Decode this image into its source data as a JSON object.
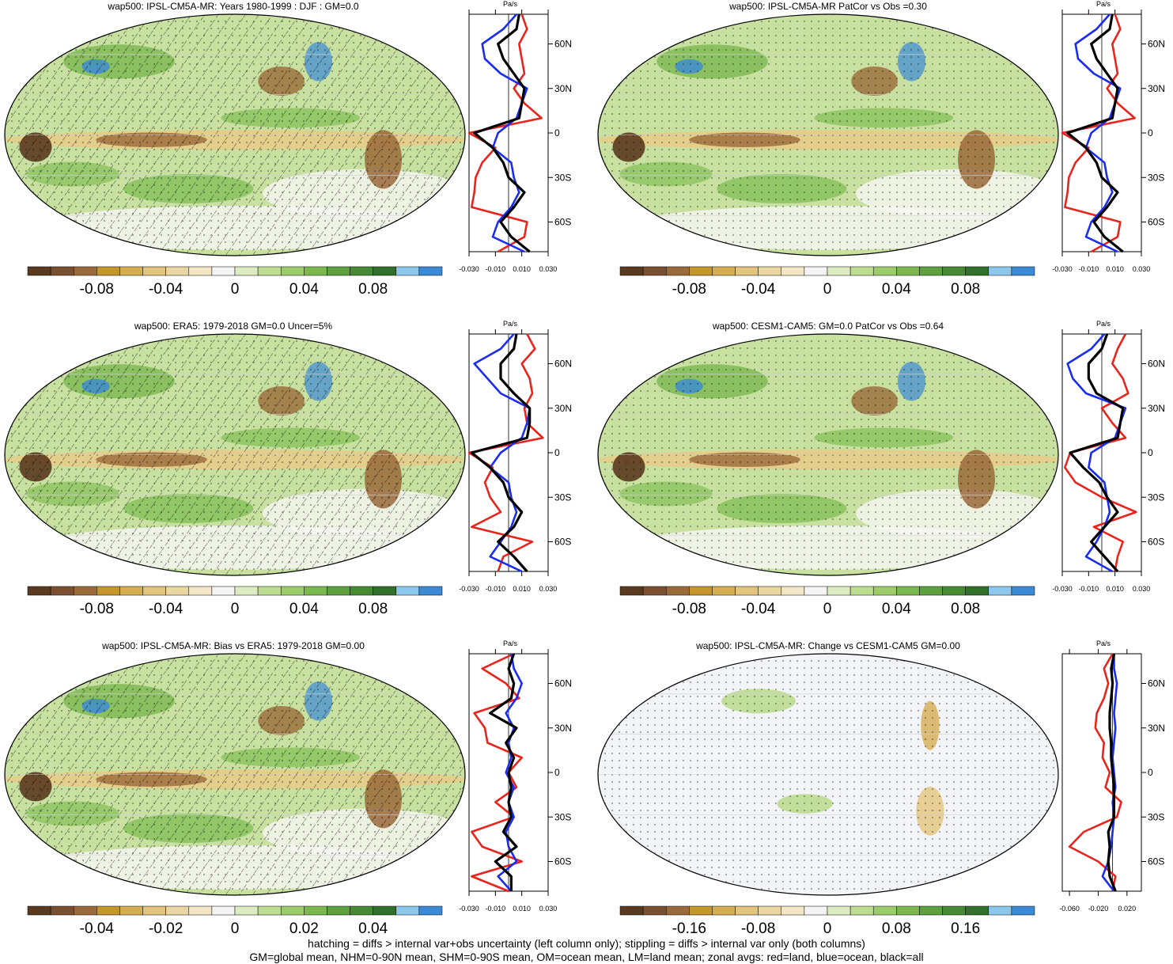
{
  "colors": {
    "palette": [
      "#5a3a1e",
      "#7a5030",
      "#9a6a3a",
      "#c4962c",
      "#d6ae52",
      "#e2c47c",
      "#ead6a0",
      "#f2e6c6",
      "#f4f4f4",
      "#dcecc0",
      "#bcdc90",
      "#9ccc6a",
      "#7cb850",
      "#5ea03e",
      "#468a34",
      "#30702a",
      "#8cc8ee",
      "#3a8ad6"
    ],
    "land_line": "#e8241c",
    "ocean_line": "#1a2cf0",
    "all_line": "#000000"
  },
  "profile_axis": {
    "unit": "Pa/s",
    "lat_ticks": [
      "60N",
      "30N",
      "0",
      "30S",
      "60S"
    ]
  },
  "panels": [
    {
      "title": "wap500: IPSL-CM5A-MR: Years 1980-1999 : DJF : GM=0.0",
      "hatching": true,
      "colorbar_ticks": [
        "-0.08",
        "-0.04",
        "0",
        "0.04",
        "0.08"
      ],
      "profile_xticks": [
        "-0.030",
        "-0.010",
        "0.010",
        "0.030"
      ],
      "chart_data": {
        "type": "line",
        "title": "wap500: IPSL-CM5A-MR: Years 1980-1999 : DJF : GM=0.0",
        "xlabel": "Pa/s",
        "xlim": [
          -0.03,
          0.03
        ],
        "ylim": [
          -80,
          80
        ],
        "series": [
          {
            "name": "red=land",
            "lat": [
              -80,
              -70,
              -60,
              -50,
              -40,
              -30,
              -20,
              -10,
              0,
              10,
              20,
              30,
              40,
              50,
              60,
              70,
              80
            ],
            "values": [
              -0.008,
              0.012,
              0.014,
              -0.028,
              -0.026,
              -0.025,
              -0.02,
              -0.01,
              -0.03,
              0.025,
              0.012,
              0.004,
              0.012,
              0.01,
              0.008,
              0.014,
              0.01
            ]
          },
          {
            "name": "blue=ocean",
            "lat": [
              -80,
              -70,
              -60,
              -50,
              -40,
              -30,
              -20,
              -10,
              0,
              10,
              20,
              30,
              40,
              50,
              60,
              70,
              80
            ],
            "values": [
              0.012,
              -0.012,
              -0.008,
              0.002,
              0.008,
              0.004,
              0.002,
              -0.012,
              -0.008,
              0.006,
              0.01,
              0.014,
              -0.006,
              -0.018,
              -0.02,
              -0.004,
              0.006
            ]
          },
          {
            "name": "black=all",
            "lat": [
              -80,
              -70,
              -60,
              -50,
              -40,
              -30,
              -20,
              -10,
              0,
              10,
              20,
              30,
              40,
              50,
              60,
              70,
              80
            ],
            "values": [
              0.016,
              0.002,
              -0.006,
              0.004,
              0.012,
              0.0,
              -0.004,
              -0.012,
              -0.026,
              0.008,
              0.01,
              0.012,
              0.004,
              -0.004,
              -0.008,
              0.006,
              0.008
            ]
          }
        ]
      }
    },
    {
      "title": "wap500: IPSL-CM5A-MR PatCor vs Obs =0.30",
      "hatching": false,
      "colorbar_ticks": [
        "-0.08",
        "-0.04",
        "0",
        "0.04",
        "0.08"
      ],
      "profile_xticks": [
        "-0.030",
        "-0.010",
        "0.010",
        "0.030"
      ],
      "chart_data": {
        "type": "line",
        "title": "wap500: IPSL-CM5A-MR PatCor vs Obs =0.30",
        "xlabel": "Pa/s",
        "xlim": [
          -0.03,
          0.03
        ],
        "ylim": [
          -80,
          80
        ],
        "series": [
          {
            "name": "red=land",
            "lat": [
              -80,
              -70,
              -60,
              -50,
              -40,
              -30,
              -20,
              -10,
              0,
              10,
              20,
              30,
              40,
              50,
              60,
              70,
              80
            ],
            "values": [
              -0.008,
              0.012,
              0.014,
              -0.028,
              -0.026,
              -0.025,
              -0.02,
              -0.01,
              -0.03,
              0.025,
              0.012,
              0.004,
              0.012,
              0.01,
              0.008,
              0.014,
              0.01
            ]
          },
          {
            "name": "blue=ocean",
            "lat": [
              -80,
              -70,
              -60,
              -50,
              -40,
              -30,
              -20,
              -10,
              0,
              10,
              20,
              30,
              40,
              50,
              60,
              70,
              80
            ],
            "values": [
              0.012,
              -0.012,
              -0.008,
              0.002,
              0.008,
              0.004,
              0.002,
              -0.012,
              -0.008,
              0.006,
              0.01,
              0.014,
              -0.006,
              -0.018,
              -0.02,
              -0.004,
              0.006
            ]
          },
          {
            "name": "black=all",
            "lat": [
              -80,
              -70,
              -60,
              -50,
              -40,
              -30,
              -20,
              -10,
              0,
              10,
              20,
              30,
              40,
              50,
              60,
              70,
              80
            ],
            "values": [
              0.016,
              0.002,
              -0.006,
              0.004,
              0.012,
              0.0,
              -0.004,
              -0.012,
              -0.026,
              0.008,
              0.01,
              0.012,
              0.004,
              -0.004,
              -0.008,
              0.006,
              0.008
            ]
          }
        ]
      }
    },
    {
      "title": "wap500: ERA5: 1979-2018 GM=0.0 Uncer=5%",
      "hatching": true,
      "colorbar_ticks": [
        "-0.08",
        "-0.04",
        "0",
        "0.04",
        "0.08"
      ],
      "profile_xticks": [
        "-0.030",
        "-0.010",
        "0.010",
        "0.030"
      ],
      "chart_data": {
        "type": "line",
        "title": "wap500: ERA5: 1979-2018 GM=0.0 Uncer=5%",
        "xlabel": "Pa/s",
        "xlim": [
          -0.03,
          0.03
        ],
        "ylim": [
          -80,
          80
        ],
        "series": [
          {
            "name": "red=land",
            "lat": [
              -80,
              -70,
              -60,
              -50,
              -40,
              -30,
              -20,
              -10,
              0,
              10,
              20,
              30,
              40,
              50,
              60,
              70,
              80
            ],
            "values": [
              -0.008,
              -0.004,
              0.018,
              -0.028,
              -0.006,
              -0.014,
              -0.018,
              -0.012,
              -0.03,
              0.026,
              0.014,
              0.012,
              0.018,
              0.016,
              0.01,
              0.02,
              0.014
            ]
          },
          {
            "name": "blue=ocean",
            "lat": [
              -80,
              -70,
              -60,
              -50,
              -40,
              -30,
              -20,
              -10,
              0,
              10,
              20,
              30,
              40,
              50,
              60,
              70,
              80
            ],
            "values": [
              0.01,
              -0.014,
              -0.006,
              0.002,
              0.006,
              0.002,
              0.0,
              -0.014,
              -0.006,
              0.01,
              0.014,
              0.016,
              -0.006,
              -0.016,
              -0.026,
              -0.006,
              0.004
            ]
          },
          {
            "name": "black=all",
            "lat": [
              -80,
              -70,
              -60,
              -50,
              -40,
              -30,
              -20,
              -10,
              0,
              10,
              20,
              30,
              40,
              50,
              60,
              70,
              80
            ],
            "values": [
              0.014,
              0.004,
              -0.008,
              0.004,
              0.01,
              0.0,
              -0.004,
              -0.014,
              -0.028,
              0.014,
              0.016,
              0.016,
              0.004,
              -0.006,
              -0.006,
              0.004,
              0.006
            ]
          }
        ]
      }
    },
    {
      "title": "wap500: CESM1-CAM5: GM=0.0 PatCor vs Obs =0.64",
      "hatching": false,
      "colorbar_ticks": [
        "-0.08",
        "-0.04",
        "0",
        "0.04",
        "0.08"
      ],
      "profile_xticks": [
        "-0.030",
        "-0.010",
        "0.010",
        "0.030"
      ],
      "chart_data": {
        "type": "line",
        "title": "wap500: CESM1-CAM5: GM=0.0 PatCor vs Obs =0.64",
        "xlabel": "Pa/s",
        "xlim": [
          -0.03,
          0.03
        ],
        "ylim": [
          -80,
          80
        ],
        "series": [
          {
            "name": "red=land",
            "lat": [
              -80,
              -70,
              -60,
              -50,
              -40,
              -30,
              -20,
              -10,
              0,
              10,
              20,
              30,
              40,
              50,
              60,
              70,
              80
            ],
            "values": [
              0.01,
              0.012,
              0.016,
              -0.006,
              0.026,
              0.0,
              -0.02,
              -0.028,
              -0.024,
              0.018,
              0.008,
              0.0,
              0.02,
              0.016,
              0.008,
              0.012,
              0.018
            ]
          },
          {
            "name": "blue=ocean",
            "lat": [
              -80,
              -70,
              -60,
              -50,
              -40,
              -30,
              -20,
              -10,
              0,
              10,
              20,
              30,
              40,
              50,
              60,
              70,
              80
            ],
            "values": [
              0.008,
              -0.012,
              -0.004,
              0.002,
              0.006,
              0.004,
              0.002,
              -0.01,
              -0.008,
              0.01,
              0.014,
              0.018,
              -0.012,
              -0.022,
              -0.026,
              -0.008,
              0.002
            ]
          },
          {
            "name": "black=all",
            "lat": [
              -80,
              -70,
              -60,
              -50,
              -40,
              -30,
              -20,
              -10,
              0,
              10,
              20,
              30,
              40,
              50,
              60,
              70,
              80
            ],
            "values": [
              0.012,
              0.002,
              -0.008,
              0.002,
              0.012,
              0.004,
              -0.002,
              -0.014,
              -0.024,
              0.012,
              0.014,
              0.016,
              -0.004,
              -0.01,
              -0.01,
              0.0,
              0.004
            ]
          }
        ]
      }
    },
    {
      "title": "wap500: IPSL-CM5A-MR: Bias vs ERA5: 1979-2018 GM=0.00",
      "hatching": true,
      "colorbar_ticks": [
        "-0.04",
        "-0.02",
        "0",
        "0.02",
        "0.04"
      ],
      "profile_xticks": [
        "-0.030",
        "-0.010",
        "0.010",
        "0.030"
      ],
      "chart_data": {
        "type": "line",
        "title": "wap500: IPSL-CM5A-MR: Bias vs ERA5: 1979-2018 GM=0.00",
        "xlabel": "Pa/s",
        "xlim": [
          -0.03,
          0.03
        ],
        "ylim": [
          -80,
          80
        ],
        "series": [
          {
            "name": "red=land",
            "lat": [
              -80,
              -70,
              -60,
              -50,
              -40,
              -30,
              -20,
              -10,
              0,
              10,
              20,
              30,
              40,
              50,
              60,
              70,
              80
            ],
            "values": [
              0.0,
              -0.028,
              0.01,
              -0.02,
              -0.028,
              0.004,
              -0.01,
              0.006,
              0.0,
              0.01,
              -0.016,
              -0.018,
              -0.026,
              0.008,
              -0.002,
              -0.02,
              0.004
            ]
          },
          {
            "name": "blue=ocean",
            "lat": [
              -80,
              -70,
              -60,
              -50,
              -40,
              -30,
              -20,
              -10,
              0,
              10,
              20,
              30,
              40,
              50,
              60,
              70,
              80
            ],
            "values": [
              0.002,
              -0.008,
              0.006,
              0.0,
              -0.002,
              0.004,
              0.0,
              0.004,
              -0.002,
              0.002,
              0.0,
              0.004,
              -0.002,
              0.006,
              0.01,
              0.004,
              0.002
            ]
          },
          {
            "name": "black=all",
            "lat": [
              -80,
              -70,
              -60,
              -50,
              -40,
              -30,
              -20,
              -10,
              0,
              10,
              20,
              30,
              40,
              50,
              60,
              70,
              80
            ],
            "values": [
              0.002,
              0.002,
              -0.01,
              0.006,
              -0.004,
              0.002,
              0.0,
              0.002,
              0.0,
              0.004,
              -0.002,
              0.006,
              -0.014,
              0.002,
              0.004,
              0.0,
              0.004
            ]
          }
        ]
      }
    },
    {
      "title": "wap500: IPSL-CM5A-MR: Change vs CESM1-CAM5 GM=0.00",
      "hatching": false,
      "colorbar_ticks": [
        "-0.16",
        "-0.08",
        "0",
        "0.08",
        "0.16"
      ],
      "profile_xticks": [
        "-0.060",
        "-0.020",
        "0.020"
      ],
      "chart_data": {
        "type": "line",
        "title": "wap500: IPSL-CM5A-MR: Change vs CESM1-CAM5 GM=0.00",
        "xlabel": "Pa/s",
        "xlim": [
          -0.07,
          0.04
        ],
        "ylim": [
          -80,
          80
        ],
        "series": [
          {
            "name": "red=land",
            "lat": [
              -80,
              -70,
              -60,
              -50,
              -40,
              -30,
              -20,
              -10,
              0,
              10,
              20,
              30,
              40,
              50,
              60,
              70,
              80
            ],
            "values": [
              0.0,
              0.004,
              -0.02,
              -0.06,
              -0.04,
              0.006,
              0.012,
              -0.01,
              -0.004,
              -0.014,
              -0.012,
              -0.024,
              -0.022,
              -0.012,
              -0.006,
              -0.012,
              0.0
            ]
          },
          {
            "name": "blue=ocean",
            "lat": [
              -80,
              -70,
              -60,
              -50,
              -40,
              -30,
              -20,
              -10,
              0,
              10,
              20,
              30,
              40,
              50,
              60,
              70,
              80
            ],
            "values": [
              0.002,
              -0.014,
              -0.006,
              -0.002,
              0.0,
              0.002,
              0.0,
              0.004,
              0.002,
              0.0,
              0.002,
              0.004,
              0.002,
              0.004,
              0.006,
              0.002,
              0.002
            ]
          },
          {
            "name": "black=all",
            "lat": [
              -80,
              -70,
              -60,
              -50,
              -40,
              -30,
              -20,
              -10,
              0,
              10,
              20,
              30,
              40,
              50,
              60,
              70,
              80
            ],
            "values": [
              0.004,
              -0.004,
              -0.006,
              -0.004,
              -0.006,
              0.002,
              0.002,
              0.002,
              0.0,
              -0.002,
              -0.002,
              -0.004,
              -0.004,
              -0.002,
              0.0,
              -0.002,
              0.002
            ]
          }
        ]
      }
    }
  ],
  "footer": {
    "line1": "hatching = diffs > internal var+obs uncertainty (left column only); stippling = diffs > internal var only (both columns)",
    "line2": "GM=global mean, NHM=0-90N mean, SHM=0-90S mean, OM=ocean mean, LM=land mean; zonal avgs: red=land, blue=ocean, black=all"
  }
}
